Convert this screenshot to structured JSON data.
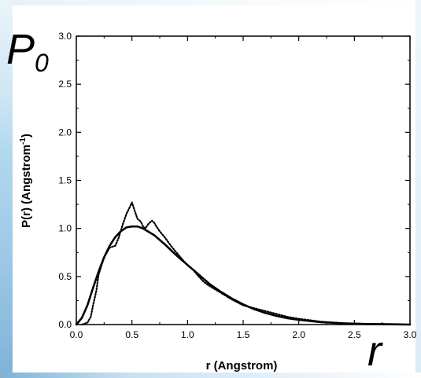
{
  "overlay": {
    "p0_main": "P",
    "p0_sub": "0",
    "r_symbol": "r"
  },
  "chart_data": {
    "type": "line",
    "xlabel": "r  (Angstrom)",
    "ylabel": "P(r)  (Angstrom",
    "ylabel_sup": "-1",
    "ylabel_tail": ")",
    "xlim": [
      0.0,
      3.0
    ],
    "ylim": [
      0.0,
      3.0
    ],
    "x_ticks": [
      "0.0",
      "0.5",
      "1.0",
      "1.5",
      "2.0",
      "2.5",
      "3.0"
    ],
    "y_ticks": [
      "0.0",
      "0.5",
      "1.0",
      "1.5",
      "2.0",
      "2.5",
      "3.0"
    ],
    "grid": false,
    "legend": "none",
    "series": [
      {
        "style": "solid",
        "color": "#000000",
        "x": [
          0.0,
          0.05,
          0.1,
          0.15,
          0.2,
          0.25,
          0.3,
          0.35,
          0.4,
          0.45,
          0.5,
          0.55,
          0.6,
          0.7,
          0.8,
          0.9,
          1.0,
          1.1,
          1.2,
          1.3,
          1.4,
          1.5,
          1.6,
          1.7,
          1.8,
          1.9,
          2.0,
          2.2,
          2.4,
          2.6,
          2.8,
          3.0
        ],
        "y": [
          0.0,
          0.07,
          0.2,
          0.38,
          0.55,
          0.7,
          0.82,
          0.91,
          0.97,
          1.01,
          1.02,
          1.02,
          1.0,
          0.93,
          0.83,
          0.72,
          0.62,
          0.52,
          0.42,
          0.34,
          0.27,
          0.21,
          0.16,
          0.12,
          0.09,
          0.065,
          0.05,
          0.025,
          0.012,
          0.006,
          0.003,
          0.0
        ]
      },
      {
        "style": "dotted",
        "color": "#000000",
        "x": [
          0.05,
          0.1,
          0.13,
          0.15,
          0.18,
          0.2,
          0.25,
          0.3,
          0.35,
          0.38,
          0.42,
          0.45,
          0.48,
          0.5,
          0.52,
          0.55,
          0.58,
          0.6,
          0.62,
          0.65,
          0.68,
          0.7,
          0.72,
          0.75,
          0.8,
          0.85,
          0.9,
          0.95,
          1.0,
          1.05,
          1.1,
          1.15,
          1.2,
          1.3,
          1.4,
          1.5,
          1.6,
          1.7,
          1.8,
          1.9,
          2.0,
          2.2,
          2.4,
          2.6,
          2.8
        ],
        "y": [
          0.0,
          0.02,
          0.08,
          0.2,
          0.35,
          0.52,
          0.7,
          0.8,
          0.82,
          0.9,
          1.05,
          1.15,
          1.22,
          1.27,
          1.2,
          1.1,
          1.07,
          1.02,
          1.0,
          1.05,
          1.08,
          1.06,
          1.02,
          0.97,
          0.9,
          0.82,
          0.75,
          0.68,
          0.62,
          0.57,
          0.5,
          0.44,
          0.4,
          0.33,
          0.26,
          0.2,
          0.17,
          0.14,
          0.11,
          0.08,
          0.06,
          0.03,
          0.015,
          0.007,
          0.003
        ]
      }
    ]
  }
}
